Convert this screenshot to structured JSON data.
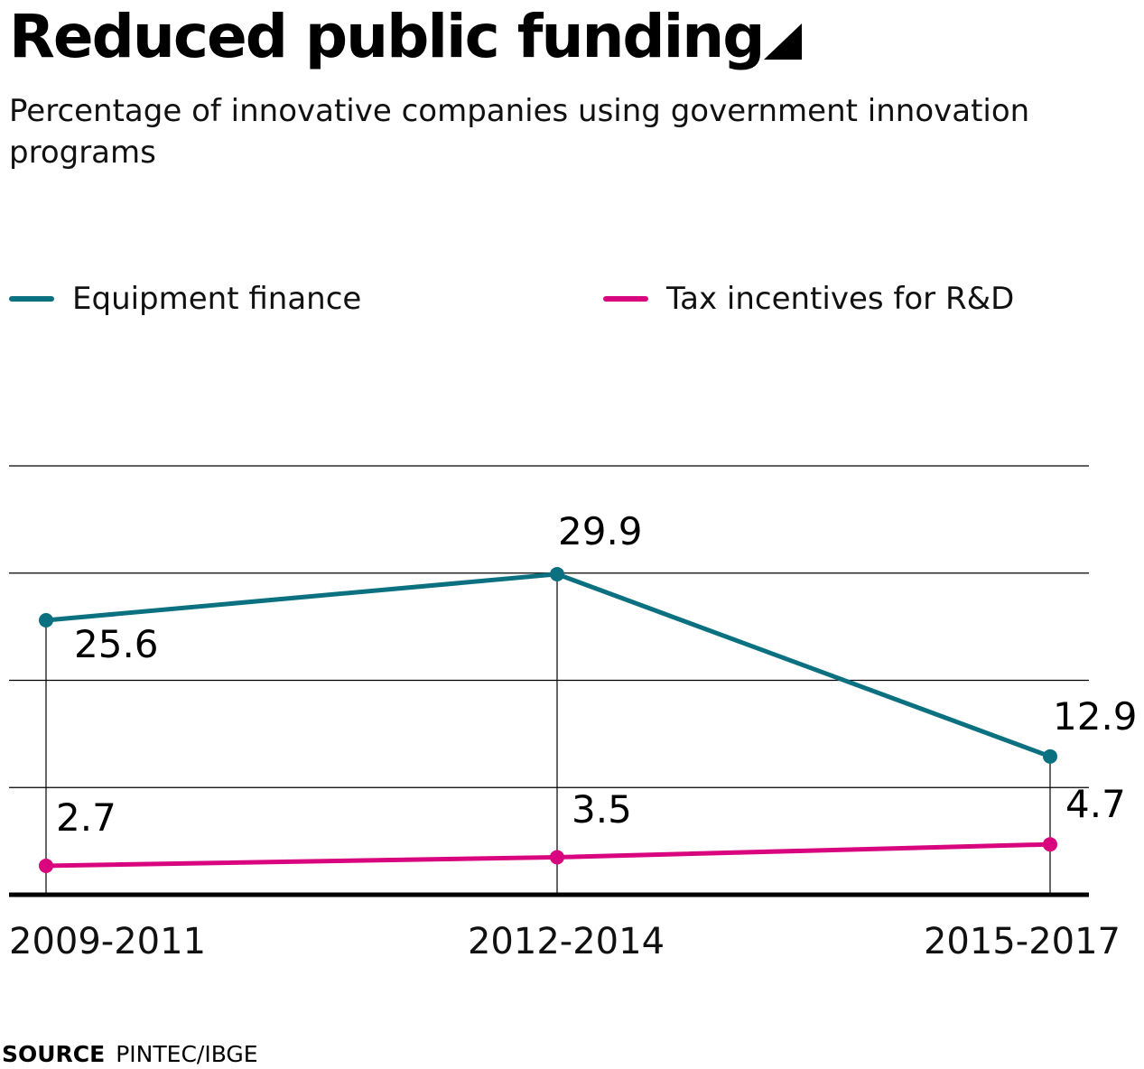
{
  "header": {
    "title": "Reduced public funding",
    "subtitle": "Percentage of innovative companies using government innovation programs"
  },
  "footer": {
    "source_label": "SOURCE",
    "source_value": "PINTEC/IBGE"
  },
  "colors": {
    "equipment_finance": "#0b7180",
    "tax_incentives": "#d9057f",
    "gridline": "#000000"
  },
  "chart_data": {
    "type": "line",
    "x": [
      "2009-2011",
      "2012-2014",
      "2015-2017"
    ],
    "ylim": [
      0,
      40
    ],
    "grid": true,
    "legend_position": "top",
    "series": [
      {
        "name": "Equipment finance",
        "values": [
          25.6,
          29.9,
          12.9
        ],
        "labels": [
          "25.6",
          "29.9",
          "12.9"
        ]
      },
      {
        "name": "Tax incentives for R&D",
        "values": [
          2.7,
          3.5,
          4.7
        ],
        "labels": [
          "2.7",
          "3.5",
          "4.7"
        ]
      }
    ]
  }
}
